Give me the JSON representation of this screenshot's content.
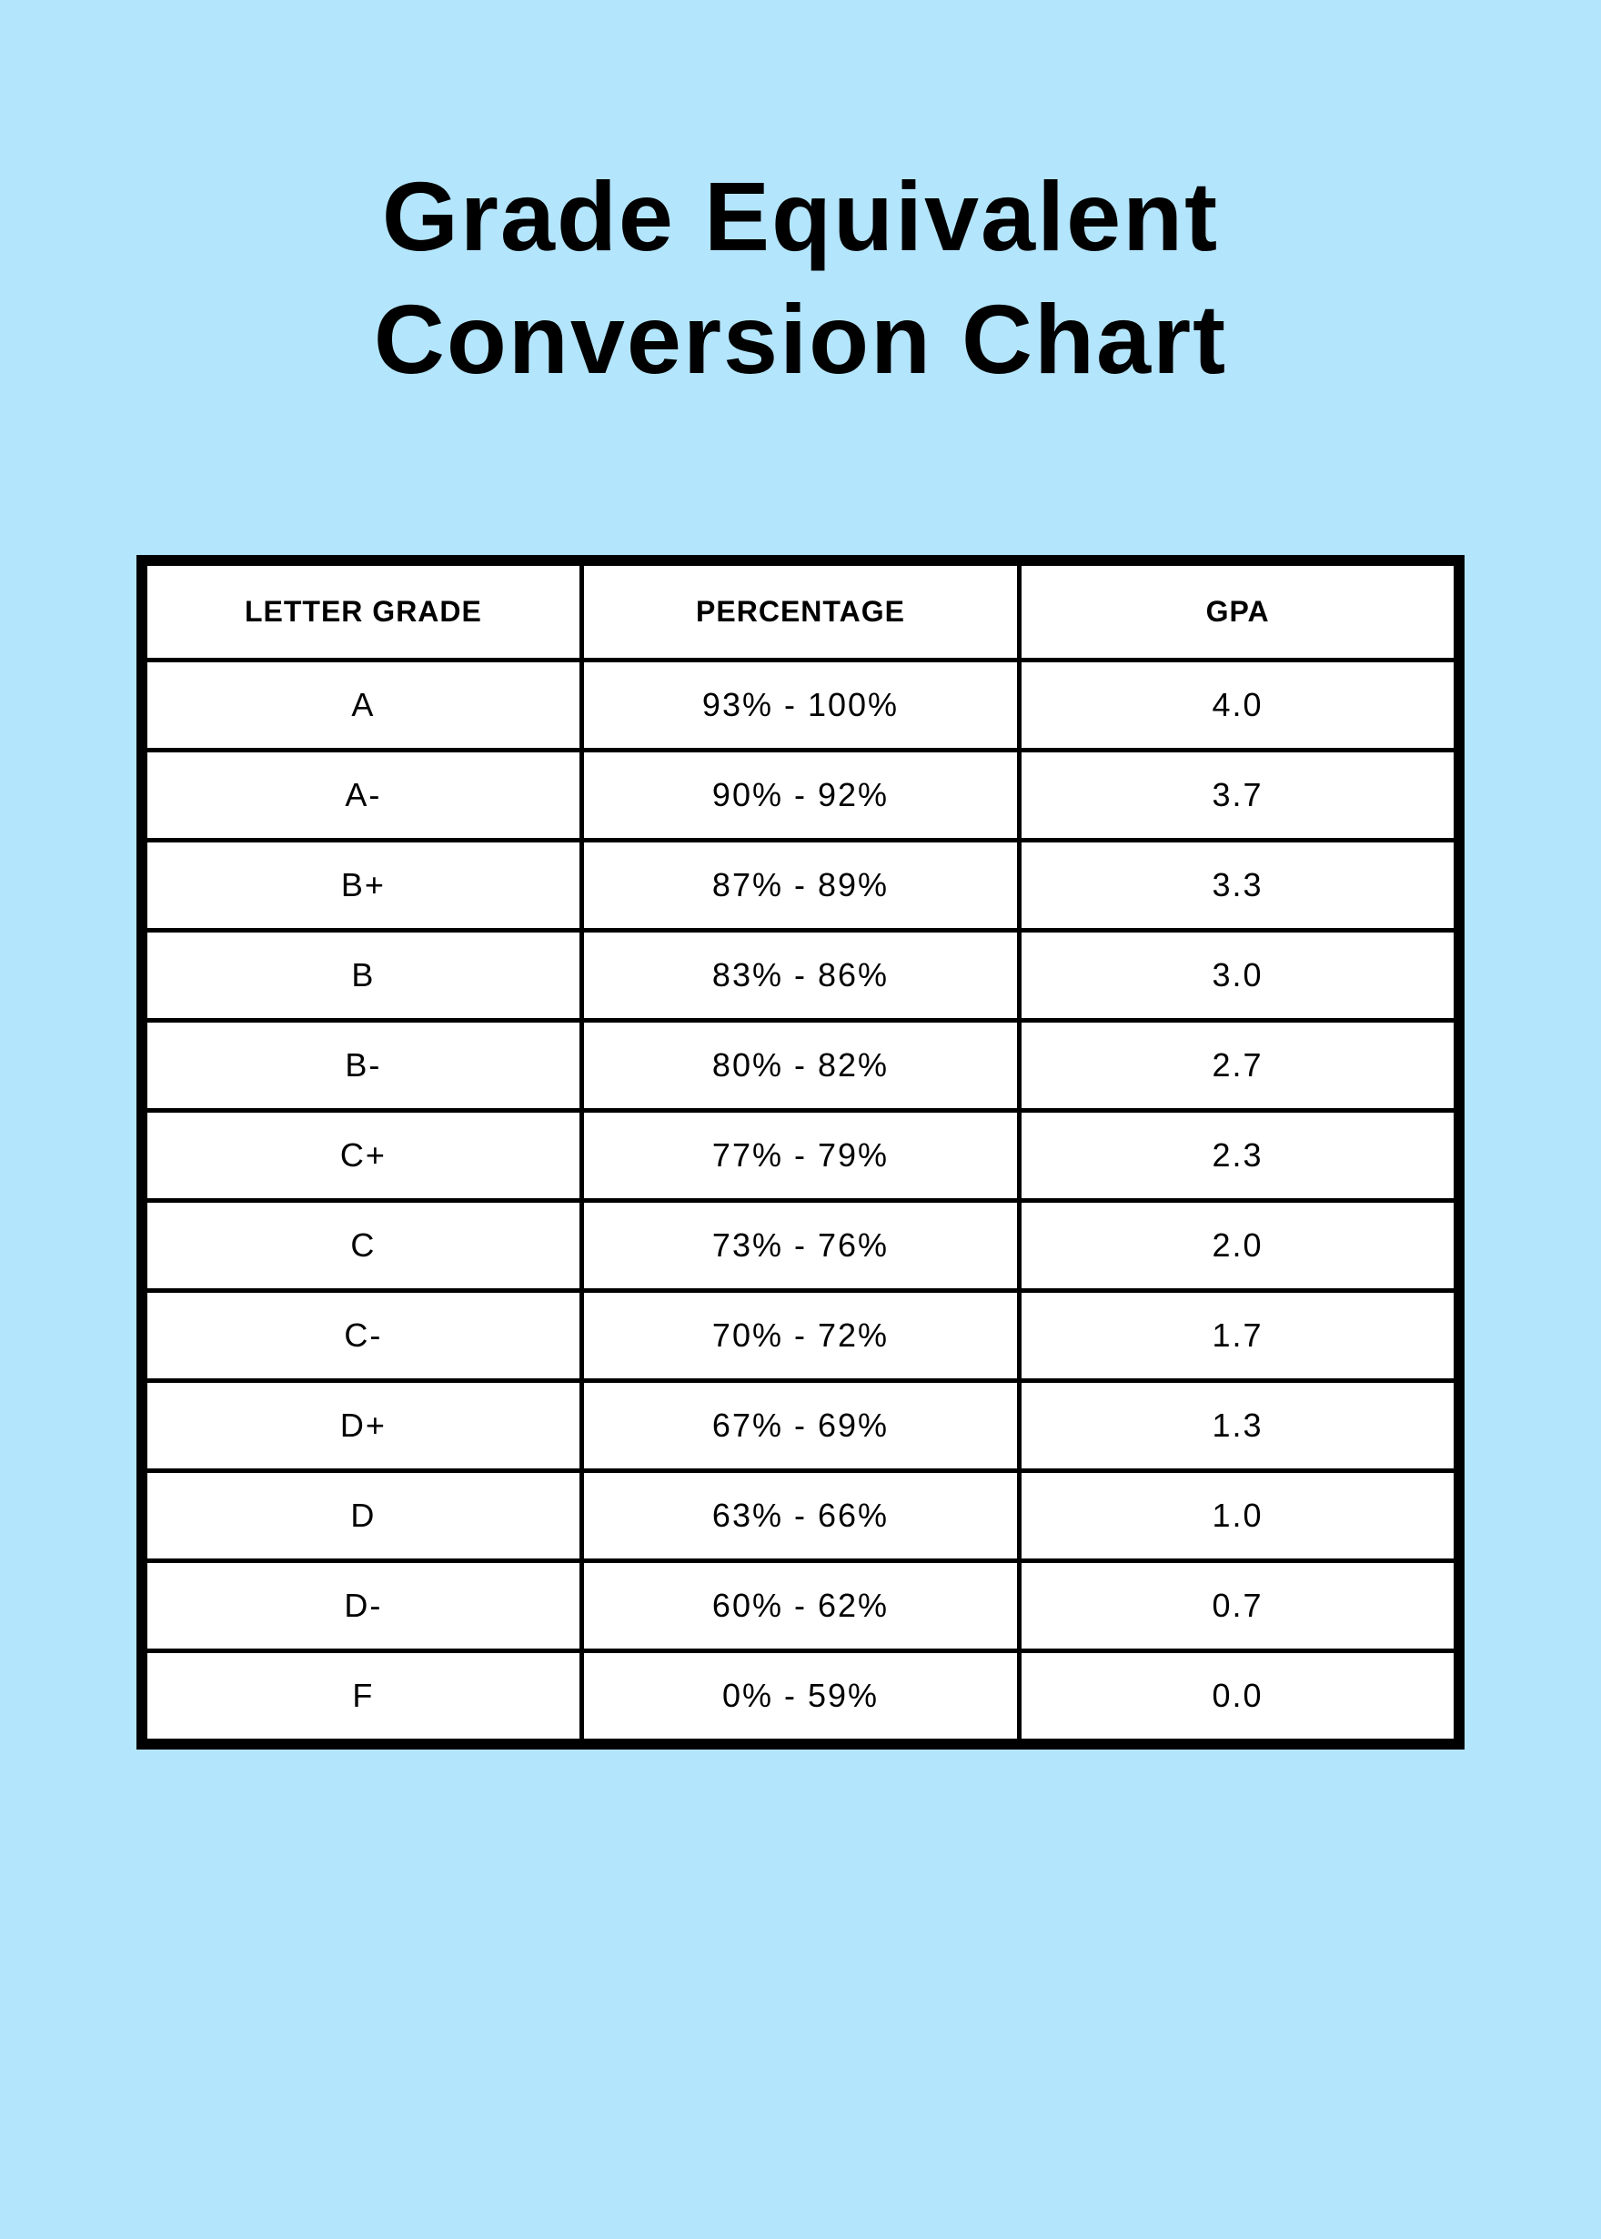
{
  "title": {
    "line1": "Grade Equivalent",
    "line2": "Conversion Chart"
  },
  "table": {
    "type": "table",
    "columns": [
      "LETTER GRADE",
      "PERCENTAGE",
      "GPA"
    ],
    "rows": [
      [
        "A",
        "93% - 100%",
        "4.0"
      ],
      [
        "A-",
        "90% - 92%",
        "3.7"
      ],
      [
        "B+",
        "87% - 89%",
        "3.3"
      ],
      [
        "B",
        "83% - 86%",
        "3.0"
      ],
      [
        "B-",
        "80% - 82%",
        "2.7"
      ],
      [
        "C+",
        "77% - 79%",
        "2.3"
      ],
      [
        "C",
        "73% - 76%",
        "2.0"
      ],
      [
        "C-",
        "70% - 72%",
        "1.7"
      ],
      [
        "D+",
        "67% - 69%",
        "1.3"
      ],
      [
        "D",
        "63% - 66%",
        "1.0"
      ],
      [
        "D-",
        "60% - 62%",
        "0.7"
      ],
      [
        "F",
        "0% - 59%",
        "0.0"
      ]
    ],
    "background_color": "#b3e5fc",
    "table_background": "#ffffff",
    "border_color": "#000000",
    "text_color": "#000000",
    "outer_border_width": 7,
    "inner_border_width": 5,
    "header_fontsize": 32,
    "header_fontweight": 700,
    "cell_fontsize": 36,
    "cell_fontweight": 400,
    "title_fontsize": 108,
    "title_fontweight": 700,
    "column_widths_pct": [
      33.3,
      33.4,
      33.3
    ]
  }
}
